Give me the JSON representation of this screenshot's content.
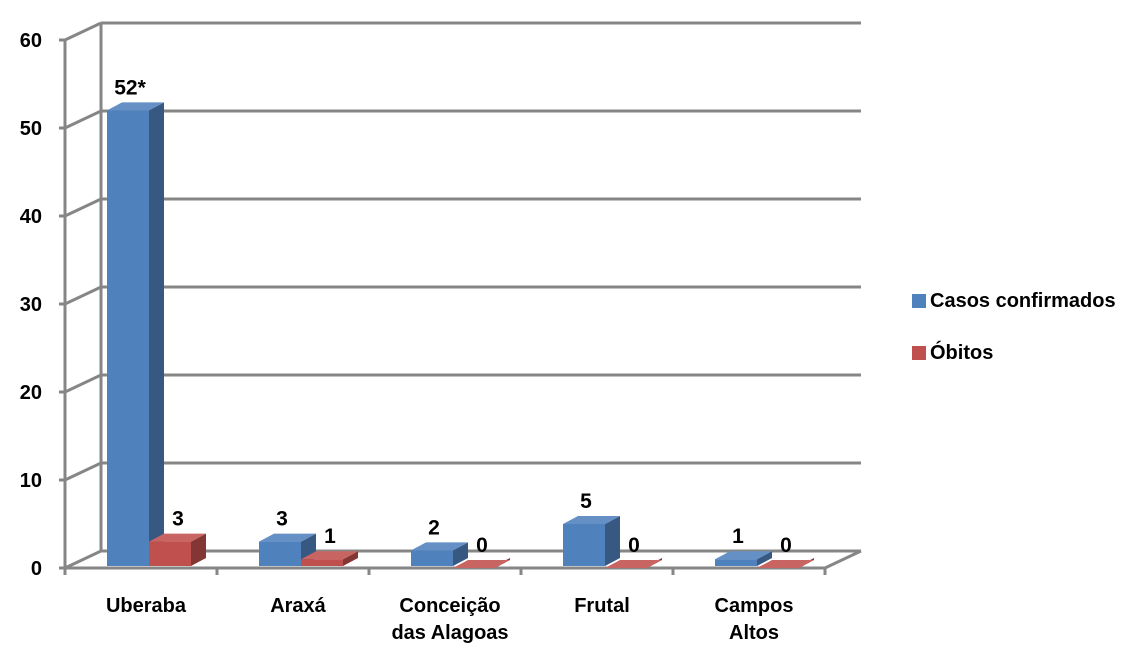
{
  "chart_data": {
    "type": "bar",
    "categories": [
      [
        "Uberaba"
      ],
      [
        "Araxá"
      ],
      [
        "Conceição",
        "das Alagoas"
      ],
      [
        "Frutal"
      ],
      [
        "Campos",
        "Altos"
      ]
    ],
    "series": [
      {
        "name": "Casos confirmados",
        "values": [
          52,
          3,
          2,
          5,
          1
        ],
        "labels": [
          "52*",
          "3",
          "2",
          "5",
          "1"
        ],
        "color": "#4F81BD"
      },
      {
        "name": "Óbitos",
        "values": [
          3,
          1,
          0,
          0,
          0
        ],
        "labels": [
          "3",
          "1",
          "0",
          "0",
          "0"
        ],
        "color": "#C0504D"
      }
    ],
    "yticks": [
      "0",
      "10",
      "20",
      "30",
      "40",
      "50",
      "60"
    ],
    "ylim": [
      0,
      60
    ],
    "grid": true,
    "legend": "right",
    "style": "3d-column"
  }
}
